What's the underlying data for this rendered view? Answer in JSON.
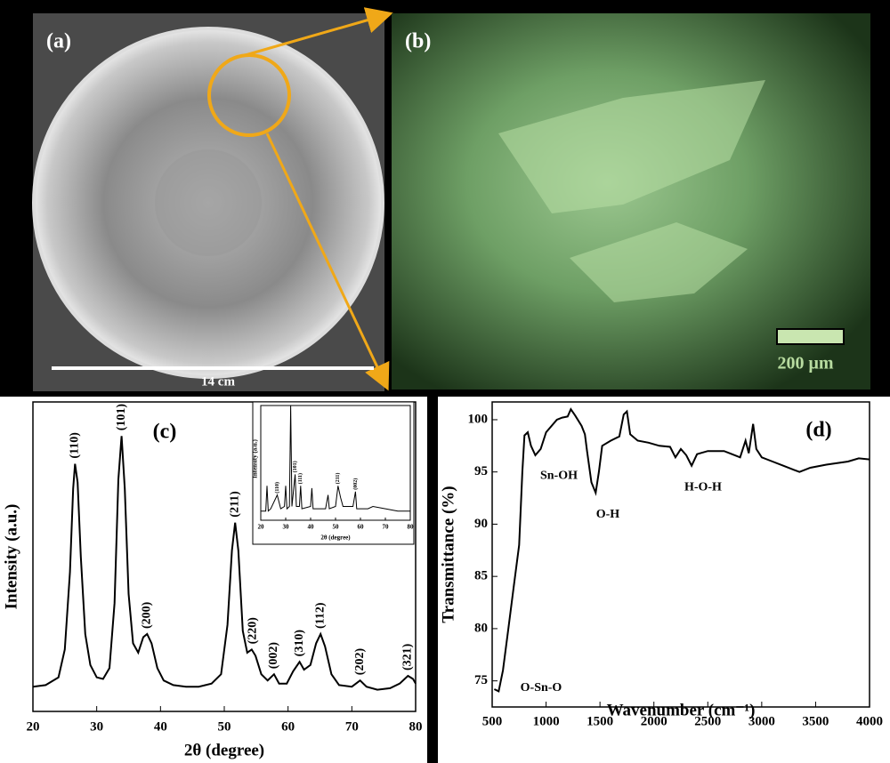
{
  "panels": {
    "a": {
      "label": "(a)",
      "scale_text": "14 cm"
    },
    "b": {
      "label": "(b)",
      "scale_text": "200 μm"
    }
  },
  "chart_data": [
    {
      "type": "line",
      "panel_label": "(c)",
      "x_label": "2θ (degree)",
      "y_label": "Intensity (a.u.)",
      "color": "#000000",
      "xlim": [
        20,
        80
      ],
      "xticks": [
        20,
        30,
        40,
        50,
        60,
        70,
        80
      ],
      "ylim": [
        0,
        100
      ],
      "x": [
        20,
        22,
        24,
        25,
        25.8,
        26.3,
        26.6,
        27,
        27.5,
        28.2,
        29,
        30,
        31,
        32,
        32.8,
        33.4,
        33.9,
        34.4,
        35,
        35.7,
        36.5,
        37.3,
        37.9,
        38.6,
        39.5,
        40.5,
        42,
        44,
        46,
        48,
        49.5,
        50.5,
        51.2,
        51.7,
        52.2,
        52.9,
        53.6,
        54.3,
        54.9,
        55.8,
        56.8,
        57.8,
        58.6,
        59.8,
        60.8,
        61.8,
        62.5,
        63.5,
        64.4,
        65.1,
        65.8,
        66.8,
        68,
        70,
        71.3,
        72.3,
        74,
        76,
        77.5,
        78.8,
        79.6,
        80
      ],
      "values": [
        8,
        8.5,
        11,
        20,
        45,
        72,
        80,
        74,
        50,
        25,
        15,
        11,
        10.5,
        14,
        35,
        75,
        89,
        72,
        38,
        22,
        19,
        24,
        25,
        22,
        14,
        10,
        8.5,
        8,
        8,
        9,
        12,
        28,
        52,
        61,
        52,
        26,
        19,
        20,
        18,
        12,
        10,
        12,
        9,
        9,
        13,
        16,
        13.5,
        15,
        22,
        25,
        21,
        12,
        8.5,
        8,
        10,
        8,
        7,
        7.5,
        9,
        11.5,
        10.5,
        9
      ],
      "annotations": [
        {
          "text": "(110)",
          "x": 26.6,
          "y": 80
        },
        {
          "text": "(101)",
          "x": 33.9,
          "y": 89
        },
        {
          "text": "(200)",
          "x": 37.9,
          "y": 25
        },
        {
          "text": "(211)",
          "x": 51.7,
          "y": 61
        },
        {
          "text": "(220)",
          "x": 54.5,
          "y": 20
        },
        {
          "text": "(002)",
          "x": 57.8,
          "y": 12
        },
        {
          "text": "(310)",
          "x": 61.8,
          "y": 16
        },
        {
          "text": "(112)",
          "x": 65.1,
          "y": 25
        },
        {
          "text": "(202)",
          "x": 71.3,
          "y": 10
        },
        {
          "text": "(321)",
          "x": 78.8,
          "y": 11.5
        }
      ]
    },
    {
      "type": "line",
      "x_label": "2θ (degree)",
      "y_label": "Intensity (a.u.)",
      "color": "#000000",
      "xlim": [
        20,
        80
      ],
      "xticks": [
        20,
        30,
        40,
        50,
        60,
        70,
        80
      ],
      "ylim": [
        0,
        100
      ],
      "x": [
        20,
        22,
        22.5,
        23,
        24,
        26.6,
        28,
        29.5,
        30,
        30.5,
        31.5,
        32,
        32.5,
        33.8,
        34.3,
        35.5,
        36,
        36.5,
        40,
        40.5,
        41,
        46,
        47,
        47.5,
        50,
        51,
        52,
        53,
        57,
        58,
        58.5,
        63,
        65,
        70,
        75,
        80
      ],
      "values": [
        8,
        8,
        30,
        8,
        10,
        22,
        10,
        12,
        30,
        10,
        12,
        100,
        12,
        40,
        12,
        12,
        30,
        10,
        12,
        28,
        10,
        10,
        22,
        10,
        12,
        30,
        20,
        12,
        12,
        25,
        10,
        10,
        12,
        10,
        8,
        8
      ],
      "annotations": [
        {
          "text": "(110)",
          "x": 26.6,
          "y": 22
        },
        {
          "text": "(101)",
          "x": 33.8,
          "y": 40
        },
        {
          "text": "(111)",
          "x": 36,
          "y": 30
        },
        {
          "text": "(211)",
          "x": 51,
          "y": 30
        },
        {
          "text": "(002)",
          "x": 58,
          "y": 25
        }
      ]
    },
    {
      "type": "line",
      "panel_label": "(d)",
      "x_label": "Wavenumber (cm⁻¹)",
      "y_label": "Transmittance (%)",
      "color": "#000000",
      "xlim": [
        500,
        4000
      ],
      "xticks": [
        500,
        1000,
        1500,
        2000,
        2500,
        3000,
        3500,
        4000
      ],
      "ylim": [
        72.5,
        101.7
      ],
      "yticks": [
        75,
        80,
        85,
        90,
        95,
        100
      ],
      "x": [
        520,
        560,
        600,
        650,
        700,
        750,
        780,
        800,
        830,
        860,
        900,
        950,
        1000,
        1100,
        1150,
        1200,
        1230,
        1270,
        1330,
        1360,
        1380,
        1420,
        1460,
        1490,
        1520,
        1600,
        1680,
        1720,
        1750,
        1780,
        1850,
        1950,
        2050,
        2150,
        2200,
        2250,
        2300,
        2350,
        2400,
        2500,
        2650,
        2800,
        2850,
        2880,
        2920,
        2950,
        3000,
        3100,
        3200,
        3300,
        3350,
        3450,
        3600,
        3800,
        3900,
        4000
      ],
      "values": [
        74.2,
        74,
        76,
        80,
        84,
        88,
        95,
        98.5,
        98.8,
        97.5,
        96.6,
        97.2,
        98.8,
        100,
        100.2,
        100.3,
        101,
        100.4,
        99.4,
        98.6,
        97,
        94,
        93,
        95,
        97.5,
        98,
        98.4,
        100.5,
        100.8,
        98.6,
        98,
        97.8,
        97.5,
        97.4,
        96.4,
        97.2,
        96.6,
        95.6,
        96.7,
        97,
        97,
        96.4,
        98,
        96.8,
        99.6,
        97.2,
        96.4,
        96,
        95.6,
        95.2,
        95,
        95.4,
        95.7,
        96,
        96.3,
        96.2
      ],
      "annotations": [
        {
          "text": "Sn-OH",
          "x": 1119,
          "y": 94.6
        },
        {
          "text": "O-H",
          "x": 1573,
          "y": 90.9
        },
        {
          "text": "H-O-H",
          "x": 2456,
          "y": 93.5
        },
        {
          "text": "O-Sn-O",
          "x": 954,
          "y": 74.3
        }
      ]
    }
  ]
}
